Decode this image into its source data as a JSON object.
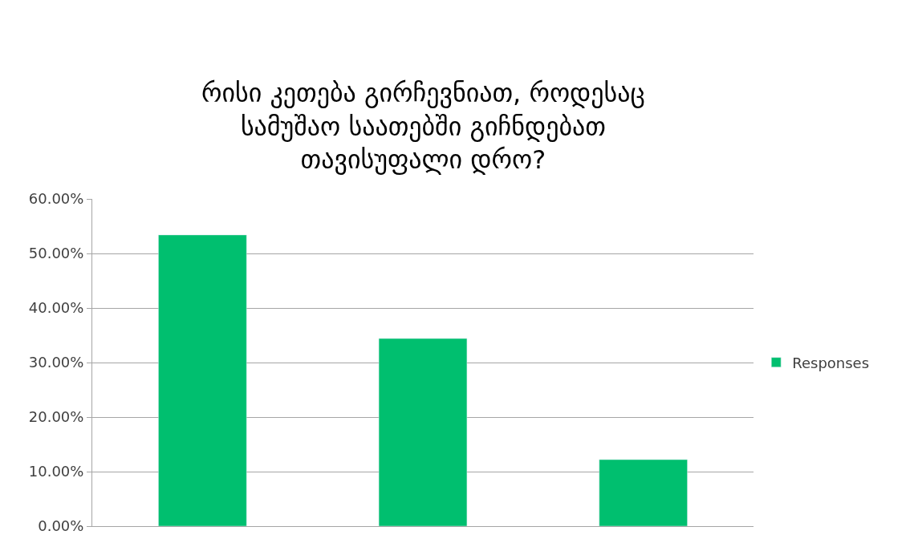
{
  "chart_data": {
    "type": "bar",
    "title": "რისი კეთება გირჩევნიათ, როდესაც\nსამუშაო საათებში გიჩნდებათ\nთავისუფალი დრო?",
    "categories": [
      null,
      null,
      null
    ],
    "series": [
      {
        "name": "Responses",
        "color": "#00bf6f",
        "values": [
          53.4,
          34.4,
          12.2
        ]
      }
    ],
    "ylim": [
      0,
      60
    ],
    "yticks": [
      {
        "value": 0,
        "label": "0.00%"
      },
      {
        "value": 10,
        "label": "10.00%"
      },
      {
        "value": 20,
        "label": "20.00%"
      },
      {
        "value": 30,
        "label": "30.00%"
      },
      {
        "value": 40,
        "label": "40.00%"
      },
      {
        "value": 50,
        "label": "50.00%"
      },
      {
        "value": 60,
        "label": "60.00%"
      }
    ],
    "grid": "y",
    "legend": "right"
  }
}
